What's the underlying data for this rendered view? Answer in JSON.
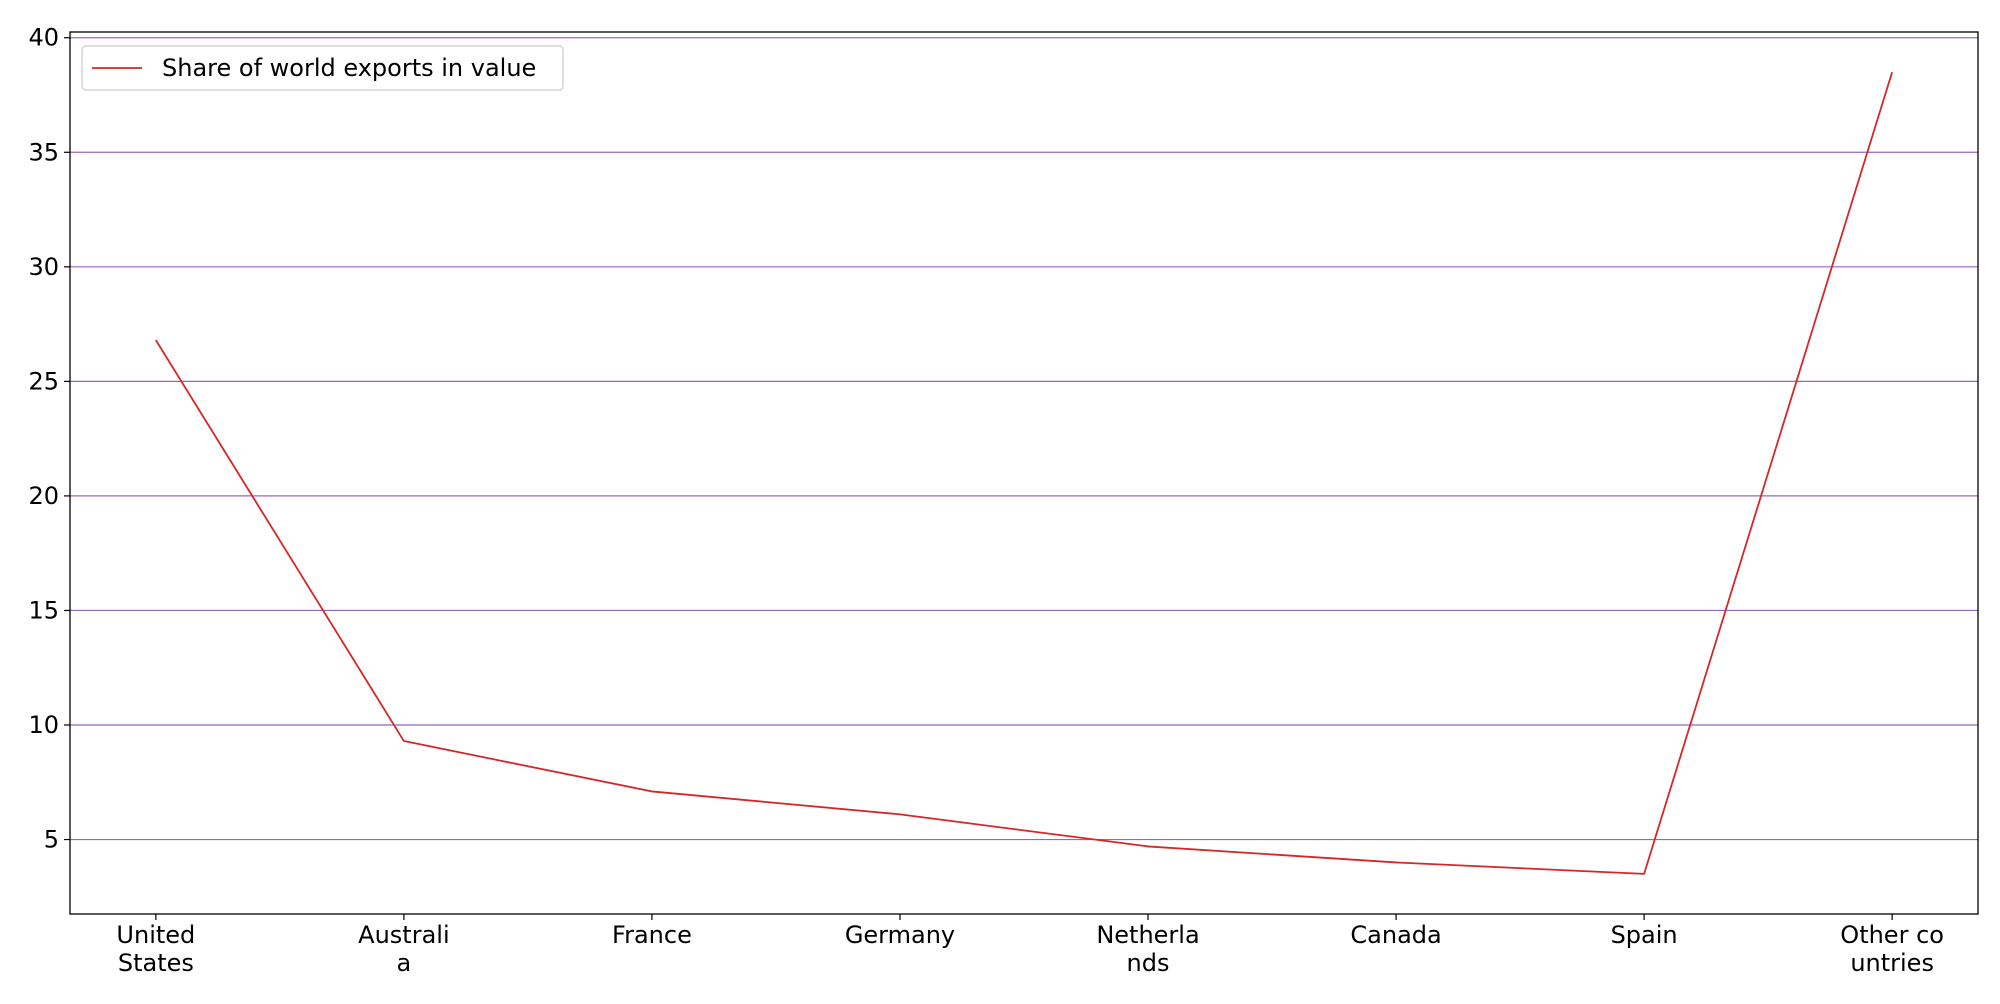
{
  "chart_data": {
    "type": "line",
    "title": "",
    "xlabel": "",
    "ylabel": "",
    "categories": [
      "United States",
      "Australia",
      "France",
      "Germany",
      "Netherlands",
      "Canada",
      "Spain",
      "Other countries"
    ],
    "category_tick_labels": [
      [
        "United",
        "States"
      ],
      [
        "Australi",
        "a"
      ],
      [
        "France"
      ],
      [
        "Germany"
      ],
      [
        "Netherla",
        "nds"
      ],
      [
        "Canada"
      ],
      [
        "Spain"
      ],
      [
        "Other co",
        "untries"
      ]
    ],
    "series": [
      {
        "name": "Share of world exports in value",
        "color": "#d62728",
        "values": [
          26.8,
          9.3,
          7.1,
          6.1,
          4.7,
          4.0,
          3.5,
          38.5
        ]
      }
    ],
    "ylim": [
      1.75,
      40.25
    ],
    "yticks": [
      5,
      10,
      15,
      20,
      25,
      30,
      35,
      40
    ],
    "grid": "horizontal",
    "grid_color": "#9467bd",
    "legend_position": "top-left"
  }
}
